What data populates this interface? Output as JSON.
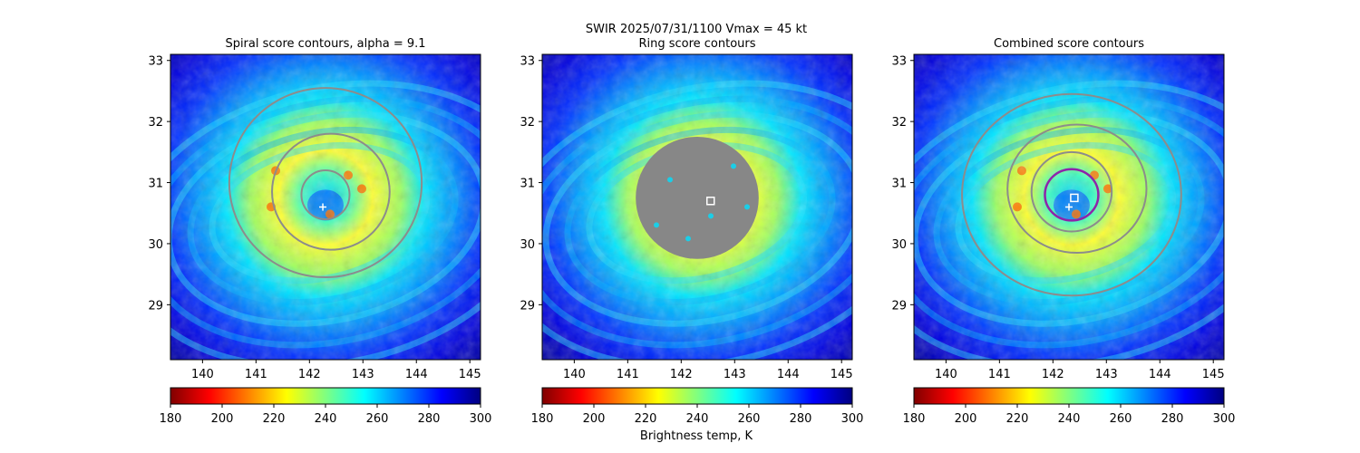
{
  "suptitle": "SWIR  2025/07/31/1100    Vmax = 45 kt",
  "colorbar_label": "Brightness temp, K",
  "colormap": [
    "#800000",
    "#ff0000",
    "#ff8000",
    "#ffff00",
    "#80ff80",
    "#00ffff",
    "#0080ff",
    "#0000ff",
    "#000080"
  ],
  "contour_color": "#8c8c8c",
  "marker_color": "#ffffff",
  "combined_ring_color": "#8e24aa",
  "chart_data": [
    {
      "type": "heatmap",
      "title": "Spiral score contours, alpha =  9.1",
      "xlim": [
        139.4,
        145.2
      ],
      "ylim": [
        28.1,
        33.1
      ],
      "xticks": [
        140,
        141,
        142,
        143,
        144,
        145
      ],
      "yticks": [
        29,
        30,
        31,
        32,
        33
      ],
      "colorbar_range": [
        180,
        300
      ],
      "colorbar_ticks": [
        180,
        200,
        220,
        240,
        260,
        280,
        300
      ],
      "center": [
        142.3,
        30.75
      ],
      "markers": [
        {
          "shape": "plus",
          "x": 142.25,
          "y": 30.6
        }
      ],
      "contours": [
        {
          "cx": 142.3,
          "cy": 30.8,
          "rx": 0.45,
          "ry": 0.4
        },
        {
          "cx": 142.4,
          "cy": 30.85,
          "rx": 1.1,
          "ry": 0.95
        },
        {
          "cx": 142.3,
          "cy": 31.0,
          "rx": 1.8,
          "ry": 1.55
        }
      ]
    },
    {
      "type": "heatmap",
      "title": "Ring score contours",
      "xlim": [
        139.4,
        145.2
      ],
      "ylim": [
        28.1,
        33.1
      ],
      "xticks": [
        140,
        141,
        142,
        143,
        144,
        145
      ],
      "yticks": [
        29,
        30,
        31,
        32,
        33
      ],
      "colorbar_range": [
        180,
        300
      ],
      "colorbar_ticks": [
        180,
        200,
        220,
        240,
        260,
        280,
        300
      ],
      "center": [
        142.4,
        30.75
      ],
      "markers": [
        {
          "shape": "square",
          "x": 142.55,
          "y": 30.7
        }
      ],
      "ring_region": {
        "cx": 142.3,
        "cy": 30.75,
        "rx": 1.15,
        "ry": 1.0
      }
    },
    {
      "type": "heatmap",
      "title": "Combined score contours",
      "xlim": [
        139.4,
        145.2
      ],
      "ylim": [
        28.1,
        33.1
      ],
      "xticks": [
        140,
        141,
        142,
        143,
        144,
        145
      ],
      "yticks": [
        29,
        30,
        31,
        32,
        33
      ],
      "colorbar_range": [
        180,
        300
      ],
      "colorbar_ticks": [
        180,
        200,
        220,
        240,
        260,
        280,
        300
      ],
      "center": [
        142.35,
        30.75
      ],
      "markers": [
        {
          "shape": "plus",
          "x": 142.3,
          "y": 30.6
        },
        {
          "shape": "square",
          "x": 142.4,
          "y": 30.75
        }
      ],
      "contours": [
        {
          "cx": 142.35,
          "cy": 30.85,
          "rx": 0.75,
          "ry": 0.65
        },
        {
          "cx": 142.45,
          "cy": 30.9,
          "rx": 1.3,
          "ry": 1.05
        },
        {
          "cx": 142.35,
          "cy": 30.8,
          "rx": 2.05,
          "ry": 1.65
        }
      ],
      "highlight_contour": {
        "cx": 142.35,
        "cy": 30.8,
        "rx": 0.5,
        "ry": 0.42
      }
    }
  ]
}
